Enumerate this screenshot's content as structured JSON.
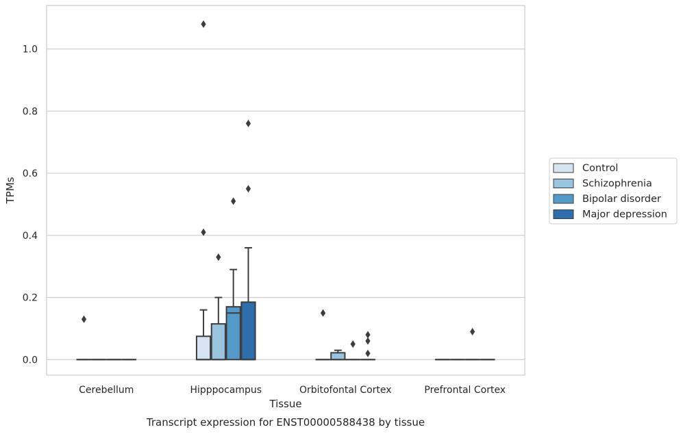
{
  "chart_data": {
    "type": "boxplot",
    "caption": "Transcript expression for ENST00000588438 by tissue",
    "xlabel": "Tissue",
    "ylabel": "TPMs",
    "ylim": [
      -0.05,
      1.14
    ],
    "yticks": [
      0.0,
      0.2,
      0.4,
      0.6,
      0.8,
      1.0
    ],
    "ytick_labels": [
      "0.0",
      "0.2",
      "0.4",
      "0.6",
      "0.8",
      "1.0"
    ],
    "grid": "horizontal",
    "legend_position": "right",
    "categories": [
      "Cerebellum",
      "Hipppocampus",
      "Orbitofontal Cortex",
      "Prefrontal Cortex"
    ],
    "series": [
      {
        "name": "Control",
        "color": "#d6e4f2",
        "boxes": [
          {
            "q1": 0,
            "median": 0,
            "q3": 0,
            "whislo": 0,
            "whishi": 0,
            "fliers": [
              0.13
            ]
          },
          {
            "q1": 0,
            "median": 0,
            "q3": 0.075,
            "whislo": 0,
            "whishi": 0.16,
            "fliers": [
              0.41,
              1.08
            ]
          },
          {
            "q1": 0,
            "median": 0,
            "q3": 0,
            "whislo": 0,
            "whishi": 0,
            "fliers": [
              0.15
            ]
          },
          {
            "q1": 0,
            "median": 0,
            "q3": 0,
            "whislo": 0,
            "whishi": 0,
            "fliers": []
          }
        ]
      },
      {
        "name": "Schizophrenia",
        "color": "#9ac3de",
        "boxes": [
          {
            "q1": 0,
            "median": 0,
            "q3": 0,
            "whislo": 0,
            "whishi": 0,
            "fliers": []
          },
          {
            "q1": 0,
            "median": 0,
            "q3": 0.115,
            "whislo": 0,
            "whishi": 0.2,
            "fliers": [
              0.33
            ]
          },
          {
            "q1": 0,
            "median": 0,
            "q3": 0.022,
            "whislo": 0,
            "whishi": 0.03,
            "fliers": []
          },
          {
            "q1": 0,
            "median": 0,
            "q3": 0,
            "whislo": 0,
            "whishi": 0,
            "fliers": []
          }
        ]
      },
      {
        "name": "Bipolar disorder",
        "color": "#5599c8",
        "boxes": [
          {
            "q1": 0,
            "median": 0,
            "q3": 0,
            "whislo": 0,
            "whishi": 0,
            "fliers": []
          },
          {
            "q1": 0,
            "median": 0.15,
            "q3": 0.17,
            "whislo": 0,
            "whishi": 0.29,
            "fliers": [
              0.51
            ]
          },
          {
            "q1": 0,
            "median": 0,
            "q3": 0,
            "whislo": 0,
            "whishi": 0,
            "fliers": [
              0.05
            ]
          },
          {
            "q1": 0,
            "median": 0,
            "q3": 0,
            "whislo": 0,
            "whishi": 0,
            "fliers": [
              0.09
            ]
          }
        ]
      },
      {
        "name": "Major depression",
        "color": "#2e6eaa",
        "boxes": [
          {
            "q1": 0,
            "median": 0,
            "q3": 0,
            "whislo": 0,
            "whishi": 0,
            "fliers": []
          },
          {
            "q1": 0,
            "median": 0,
            "q3": 0.185,
            "whislo": 0,
            "whishi": 0.36,
            "fliers": [
              0.55,
              0.76
            ]
          },
          {
            "q1": 0,
            "median": 0,
            "q3": 0,
            "whislo": 0,
            "whishi": 0,
            "fliers": [
              0.02,
              0.06,
              0.08
            ]
          },
          {
            "q1": 0,
            "median": 0,
            "q3": 0,
            "whislo": 0,
            "whishi": 0,
            "fliers": []
          }
        ]
      }
    ]
  }
}
